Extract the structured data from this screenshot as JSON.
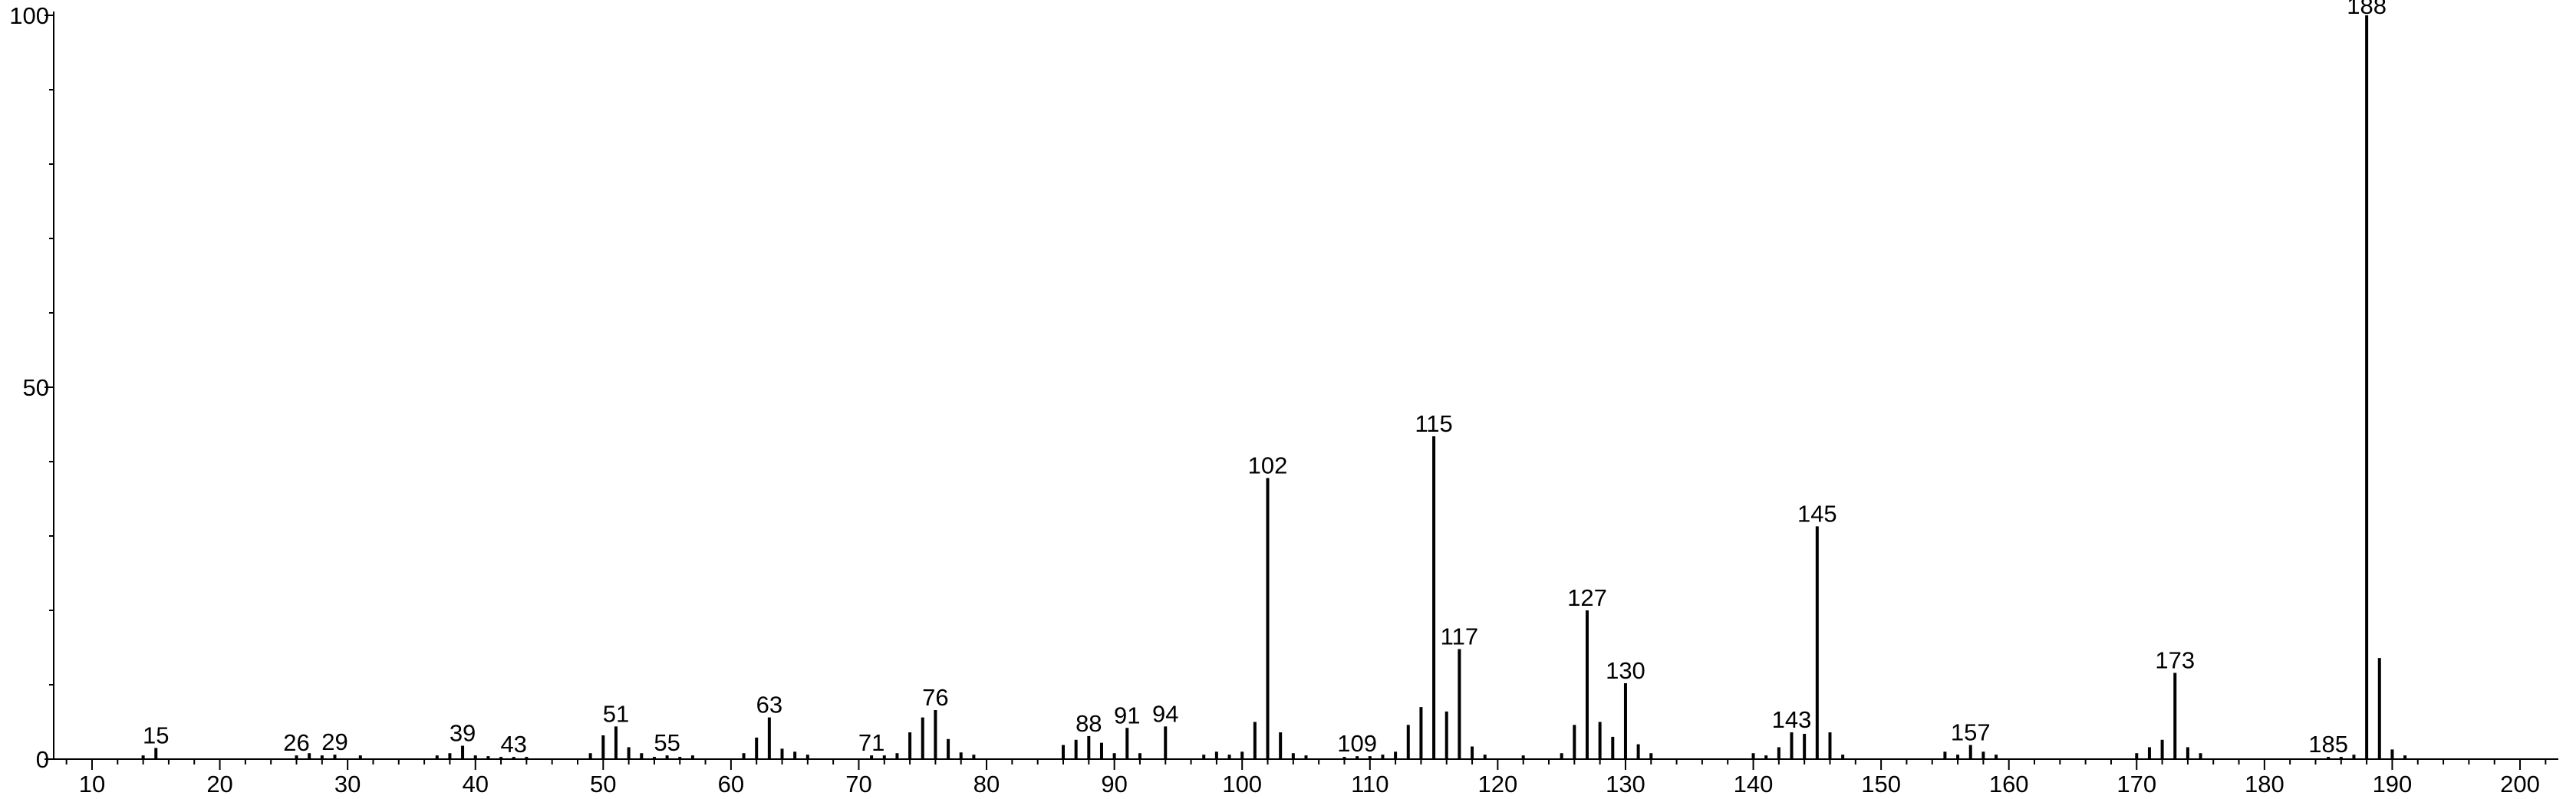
{
  "chart_data": {
    "type": "bar",
    "title": "",
    "xlabel": "",
    "ylabel": "",
    "xlim": [
      7,
      203
    ],
    "ylim": [
      0,
      100
    ],
    "x_ticks": [
      "10",
      "20",
      "30",
      "40",
      "50",
      "60",
      "70",
      "80",
      "90",
      "100",
      "110",
      "120",
      "130",
      "140",
      "150",
      "160",
      "170",
      "180",
      "190",
      "200"
    ],
    "y_ticks": [
      "0",
      "50",
      "100"
    ],
    "grid": false,
    "legend": "none",
    "series": [
      {
        "peaks": [
          {
            "mz": 14,
            "intensity": 0.5
          },
          {
            "mz": 15,
            "intensity": 1.5,
            "label": "15"
          },
          {
            "mz": 26,
            "intensity": 0.5,
            "label": "26"
          },
          {
            "mz": 27,
            "intensity": 0.8
          },
          {
            "mz": 28,
            "intensity": 0.5
          },
          {
            "mz": 29,
            "intensity": 0.6,
            "label": "29"
          },
          {
            "mz": 31,
            "intensity": 0.5
          },
          {
            "mz": 37,
            "intensity": 0.5
          },
          {
            "mz": 38,
            "intensity": 0.8
          },
          {
            "mz": 39,
            "intensity": 1.8,
            "label": "39"
          },
          {
            "mz": 40,
            "intensity": 0.5
          },
          {
            "mz": 41,
            "intensity": 0.4
          },
          {
            "mz": 42,
            "intensity": 0.3
          },
          {
            "mz": 43,
            "intensity": 0.3,
            "label": "43"
          },
          {
            "mz": 44,
            "intensity": 0.3
          },
          {
            "mz": 49,
            "intensity": 0.8
          },
          {
            "mz": 50,
            "intensity": 3.2
          },
          {
            "mz": 51,
            "intensity": 4.4,
            "label": "51"
          },
          {
            "mz": 52,
            "intensity": 1.6
          },
          {
            "mz": 53,
            "intensity": 0.8
          },
          {
            "mz": 54,
            "intensity": 0.3
          },
          {
            "mz": 55,
            "intensity": 0.5,
            "label": "55"
          },
          {
            "mz": 56,
            "intensity": 0.3
          },
          {
            "mz": 57,
            "intensity": 0.5
          },
          {
            "mz": 61,
            "intensity": 0.8
          },
          {
            "mz": 62,
            "intensity": 2.9
          },
          {
            "mz": 63,
            "intensity": 5.6,
            "label": "63"
          },
          {
            "mz": 64,
            "intensity": 1.4
          },
          {
            "mz": 65,
            "intensity": 1.0
          },
          {
            "mz": 66,
            "intensity": 0.6
          },
          {
            "mz": 71,
            "intensity": 0.5,
            "label": "71"
          },
          {
            "mz": 72,
            "intensity": 0.5
          },
          {
            "mz": 73,
            "intensity": 0.8
          },
          {
            "mz": 74,
            "intensity": 3.6
          },
          {
            "mz": 75,
            "intensity": 5.6
          },
          {
            "mz": 76,
            "intensity": 6.6,
            "label": "76"
          },
          {
            "mz": 77,
            "intensity": 2.7
          },
          {
            "mz": 78,
            "intensity": 0.9
          },
          {
            "mz": 79,
            "intensity": 0.6
          },
          {
            "mz": 86,
            "intensity": 1.9
          },
          {
            "mz": 87,
            "intensity": 2.6
          },
          {
            "mz": 88,
            "intensity": 3.1,
            "label": "88"
          },
          {
            "mz": 89,
            "intensity": 2.2
          },
          {
            "mz": 90,
            "intensity": 0.8
          },
          {
            "mz": 91,
            "intensity": 4.2,
            "label": "91"
          },
          {
            "mz": 92,
            "intensity": 0.8
          },
          {
            "mz": 94,
            "intensity": 4.4,
            "label": "94"
          },
          {
            "mz": 97,
            "intensity": 0.6
          },
          {
            "mz": 98,
            "intensity": 1.0
          },
          {
            "mz": 99,
            "intensity": 0.6
          },
          {
            "mz": 100,
            "intensity": 1.0
          },
          {
            "mz": 101,
            "intensity": 5.0
          },
          {
            "mz": 102,
            "intensity": 37.8,
            "label": "102"
          },
          {
            "mz": 103,
            "intensity": 3.6
          },
          {
            "mz": 104,
            "intensity": 0.8
          },
          {
            "mz": 105,
            "intensity": 0.5
          },
          {
            "mz": 108,
            "intensity": 0.3
          },
          {
            "mz": 109,
            "intensity": 0.4,
            "label": "109"
          },
          {
            "mz": 110,
            "intensity": 0.4
          },
          {
            "mz": 111,
            "intensity": 0.6
          },
          {
            "mz": 112,
            "intensity": 1.0
          },
          {
            "mz": 113,
            "intensity": 4.6
          },
          {
            "mz": 114,
            "intensity": 7.0
          },
          {
            "mz": 115,
            "intensity": 43.4,
            "label": "115"
          },
          {
            "mz": 116,
            "intensity": 6.4
          },
          {
            "mz": 117,
            "intensity": 14.8,
            "label": "117"
          },
          {
            "mz": 118,
            "intensity": 1.7
          },
          {
            "mz": 119,
            "intensity": 0.6
          },
          {
            "mz": 122,
            "intensity": 0.5
          },
          {
            "mz": 125,
            "intensity": 0.8
          },
          {
            "mz": 126,
            "intensity": 4.6
          },
          {
            "mz": 127,
            "intensity": 20.0,
            "label": "127"
          },
          {
            "mz": 128,
            "intensity": 5.0
          },
          {
            "mz": 129,
            "intensity": 3.0
          },
          {
            "mz": 130,
            "intensity": 10.2,
            "label": "130"
          },
          {
            "mz": 131,
            "intensity": 2.0
          },
          {
            "mz": 132,
            "intensity": 0.8
          },
          {
            "mz": 140,
            "intensity": 0.8
          },
          {
            "mz": 141,
            "intensity": 0.5
          },
          {
            "mz": 142,
            "intensity": 1.6
          },
          {
            "mz": 143,
            "intensity": 3.6,
            "label": "143"
          },
          {
            "mz": 144,
            "intensity": 3.4
          },
          {
            "mz": 145,
            "intensity": 31.3,
            "label": "145"
          },
          {
            "mz": 146,
            "intensity": 3.6
          },
          {
            "mz": 147,
            "intensity": 0.6
          },
          {
            "mz": 155,
            "intensity": 1.0
          },
          {
            "mz": 156,
            "intensity": 0.6
          },
          {
            "mz": 157,
            "intensity": 1.9,
            "label": "157"
          },
          {
            "mz": 158,
            "intensity": 1.0
          },
          {
            "mz": 159,
            "intensity": 0.6
          },
          {
            "mz": 170,
            "intensity": 0.8
          },
          {
            "mz": 171,
            "intensity": 1.6
          },
          {
            "mz": 172,
            "intensity": 2.6
          },
          {
            "mz": 173,
            "intensity": 11.6,
            "label": "173"
          },
          {
            "mz": 174,
            "intensity": 1.6
          },
          {
            "mz": 175,
            "intensity": 0.8
          },
          {
            "mz": 185,
            "intensity": 0.3,
            "label": "185"
          },
          {
            "mz": 186,
            "intensity": 0.3
          },
          {
            "mz": 187,
            "intensity": 0.6
          },
          {
            "mz": 188,
            "intensity": 100,
            "label": "188"
          },
          {
            "mz": 189,
            "intensity": 13.6
          },
          {
            "mz": 190,
            "intensity": 1.3
          },
          {
            "mz": 191,
            "intensity": 0.5
          }
        ]
      }
    ]
  }
}
